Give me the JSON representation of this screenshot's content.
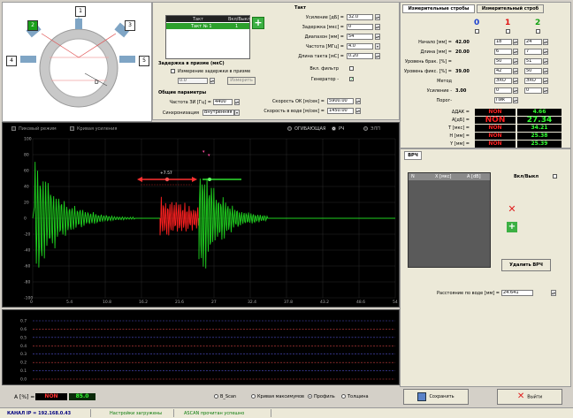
{
  "probe": {
    "numbers": [
      "1",
      "2",
      "3",
      "4",
      "5"
    ],
    "d_label": "D"
  },
  "tact_table": {
    "headers": [
      "Такт",
      "Вкл/Выкл"
    ],
    "row": [
      "Такт № 1",
      "1"
    ]
  },
  "tact": {
    "title": "Такт",
    "fields": [
      {
        "label": "Усиление [дБ] =",
        "value": "32.0"
      },
      {
        "label": "Задержка [мкс] =",
        "value": "0"
      },
      {
        "label": "Диапазон [мм] =",
        "value": "54"
      },
      {
        "label": "Частота [МГц] =",
        "value": "4.0"
      },
      {
        "label": "Длина такта [мС] =",
        "value": "0.20"
      }
    ],
    "filter_label": "Вкл. фильтр",
    "generator_label": "Генератор -",
    "generator_check": "✓"
  },
  "prism": {
    "title": "Задержка в призме (мкС)",
    "measure_label": "Измерение задержки в призме",
    "value": "0.0",
    "measure_button": "Измерить"
  },
  "common": {
    "title": "Общие параметры",
    "freq_label": "Частота ЗИ [Гц] =",
    "freq_value": "4400",
    "sync_label": "Синхронизация",
    "sync_value": "Внутренняя",
    "sound_ok_label": "Скорость ОК [м/сек] =",
    "sound_ok_value": "5900.00",
    "sound_water_label": "Скорость в воде [м/сек] =",
    "sound_water_value": "1450.00"
  },
  "strobe_tabs": [
    "Измерительные стробы",
    "Измерительный строб"
  ],
  "strobes": {
    "columns": [
      "0",
      "1",
      "2"
    ],
    "column_colors": [
      "#1a3fd0",
      "#e01010",
      "#10a010"
    ],
    "rows": [
      {
        "label": "Начало [мм] =",
        "values": [
          "42.00",
          "18",
          "24"
        ]
      },
      {
        "label": "Длина [мм] =",
        "values": [
          "20.00",
          "6",
          "7"
        ]
      },
      {
        "label": "Уровень брак. [%] =",
        "values": [
          "",
          "50",
          "51"
        ]
      },
      {
        "label": "Уровень фикс. [%] =",
        "values": [
          "39.00",
          "42",
          "50"
        ]
      },
      {
        "label": "Метод",
        "values": [
          "",
          "ЭХО",
          "ЭХО"
        ]
      },
      {
        "label": "Усиление -",
        "values": [
          "3.00",
          "0",
          "0"
        ]
      },
      {
        "label": "Порог-",
        "values": [
          "",
          "Пик",
          ""
        ]
      }
    ]
  },
  "measurements": [
    {
      "label": "ΔДАК =",
      "v1": "NON",
      "v2": "4.66"
    },
    {
      "label": "A[дБ] =",
      "v1": "NON",
      "v2": "27.34"
    },
    {
      "label": "T [мкс] =",
      "v1": "NON",
      "v2": "34.21"
    },
    {
      "label": "H [мм] =",
      "v1": "NON",
      "v2": "25.38"
    },
    {
      "label": "Y [мм] =",
      "v1": "NON",
      "v2": "25.39"
    }
  ],
  "vrch": {
    "tab": "ВРЧ",
    "table_headers": [
      "N",
      "X [мкс]",
      "A [dB]"
    ],
    "enable_label": "Вкл/Выкл",
    "delete_button": "Удалить ВРЧ",
    "water_distance_label": "Расстояние по воде [мм] =",
    "water_distance_value": "24.641"
  },
  "ascan": {
    "options": [
      "Пиковый режим",
      "Кривая усиления"
    ],
    "modes": [
      "ОГИБАЮЩАЯ",
      "РЧ",
      "ЭЛП"
    ],
    "y_ticks": [
      "100",
      "80",
      "60",
      "40",
      "20",
      "0",
      "-20",
      "-40",
      "-60",
      "-80",
      "-100"
    ],
    "x_ticks": [
      "0",
      "5.4",
      "10.8",
      "16.2",
      "21.6",
      "27",
      "32.4",
      "37.8",
      "43.2",
      "48.6",
      "54"
    ],
    "strobe_label": "+7.57"
  },
  "lower_plot": {
    "y_ticks": [
      "0.7",
      "0.6",
      "0.5",
      "0.4",
      "0.3",
      "0.2",
      "0.1",
      "0.0"
    ]
  },
  "bottom": {
    "amp_label": "A [%] =",
    "amp_non": "NON",
    "amp_value": "85.0",
    "view_modes": [
      "B_Scan",
      "Кривая максимумов",
      "Профиль",
      "Толщина"
    ],
    "view_selected": 2,
    "save_button": "Сохранить",
    "exit_button": "Выйти"
  },
  "status": {
    "ip": "КАНАЛ IP = 192.168.0.43",
    "settings": "Настройки загружены",
    "ascan": "ASCAN прочитан успешно"
  }
}
